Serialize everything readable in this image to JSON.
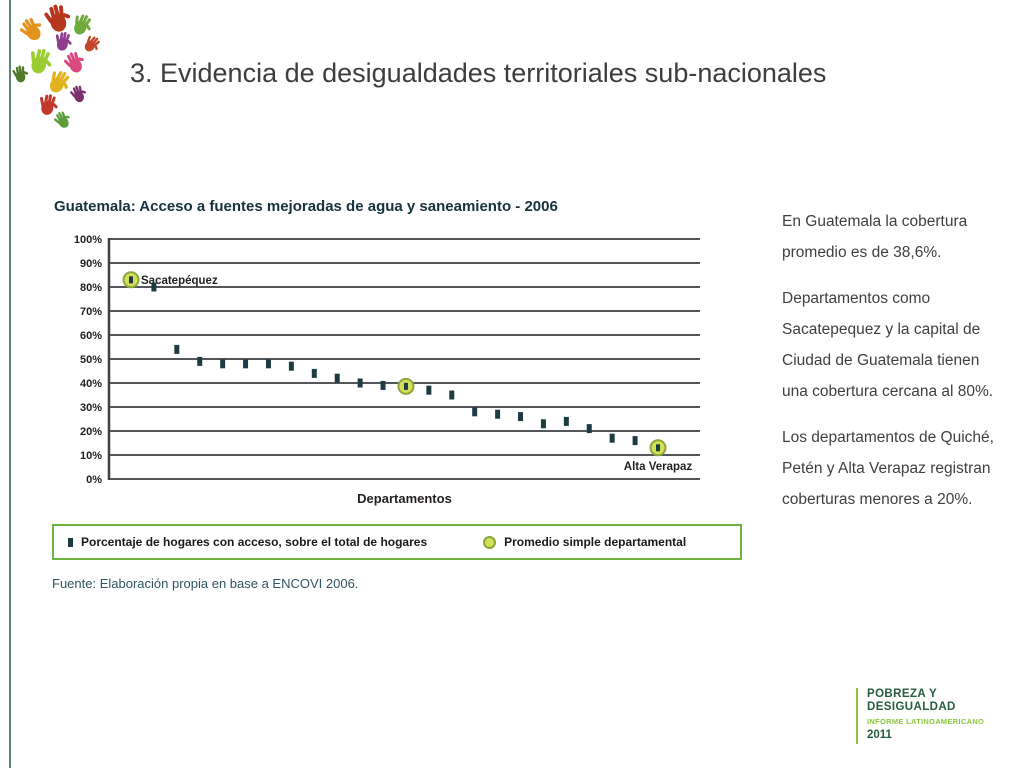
{
  "slide": {
    "title": "3. Evidencia de desigualdades territoriales sub-nacionales"
  },
  "chart": {
    "source": "Fuente: Elaboración propia en base a ENCOVI 2006."
  },
  "chart_data": {
    "type": "scatter",
    "title": "Guatemala: Acceso a fuentes mejoradas de agua y saneamiento - 2006",
    "xlabel": "Departamentos",
    "ylabel": "",
    "ylim": [
      0,
      100
    ],
    "ytick_interval": 10,
    "ytick_format": "percent",
    "grid": true,
    "legend_position": "bottom",
    "legend": [
      {
        "marker": "square",
        "label": "Porcentaje de hogares con acceso, sobre el total de hogares"
      },
      {
        "marker": "circle",
        "label": "Promedio simple departamental"
      }
    ],
    "points": [
      {
        "marker": "circle",
        "value": 83,
        "label": "Sacatepéquez",
        "label_pos": "right"
      },
      {
        "marker": "square",
        "value": 80
      },
      {
        "marker": "square",
        "value": 54
      },
      {
        "marker": "square",
        "value": 49
      },
      {
        "marker": "square",
        "value": 48
      },
      {
        "marker": "square",
        "value": 48
      },
      {
        "marker": "square",
        "value": 48
      },
      {
        "marker": "square",
        "value": 47
      },
      {
        "marker": "square",
        "value": 44
      },
      {
        "marker": "square",
        "value": 42
      },
      {
        "marker": "square",
        "value": 40
      },
      {
        "marker": "square",
        "value": 39
      },
      {
        "marker": "circle",
        "value": 38.6
      },
      {
        "marker": "square",
        "value": 37
      },
      {
        "marker": "square",
        "value": 35
      },
      {
        "marker": "square",
        "value": 28
      },
      {
        "marker": "square",
        "value": 27
      },
      {
        "marker": "square",
        "value": 26
      },
      {
        "marker": "square",
        "value": 23
      },
      {
        "marker": "square",
        "value": 24
      },
      {
        "marker": "square",
        "value": 21
      },
      {
        "marker": "square",
        "value": 17
      },
      {
        "marker": "square",
        "value": 16
      },
      {
        "marker": "circle",
        "value": 13,
        "label": "Alta Verapaz",
        "label_pos": "below"
      }
    ],
    "colors": {
      "square": "#1d3b43",
      "circle_fill": "#d6df58",
      "circle_stroke": "#8aa63c",
      "grid": "#55565a",
      "axis": "#3f4043",
      "tick_text": "#231f20",
      "legend_border": "#6db33f"
    }
  },
  "commentary": {
    "paragraphs": [
      "En Guatemala la cobertura promedio es de 38,6%.",
      "Departamentos como Sacatepequez y la capital de Ciudad de Guatemala tienen una cobertura cercana al 80%.",
      "Los departamentos de Quiché, Petén y Alta Verapaz registran coberturas menores a 20%."
    ]
  },
  "brand": {
    "line1": "POBREZA Y",
    "line2": "DESIGUALDAD",
    "line3": "INFORME LATINOAMERICANO",
    "line4": "2011",
    "dark_green": "#265c40",
    "bright_green": "#8cc63e"
  },
  "logo_colors": [
    "#b5351e",
    "#6faa3c",
    "#e2931d",
    "#8e3d8e",
    "#c4452c",
    "#9acd32",
    "#d84a7f",
    "#4f7a28",
    "#e2b31d",
    "#7a2f6f",
    "#c0392b",
    "#5d9c3a"
  ]
}
